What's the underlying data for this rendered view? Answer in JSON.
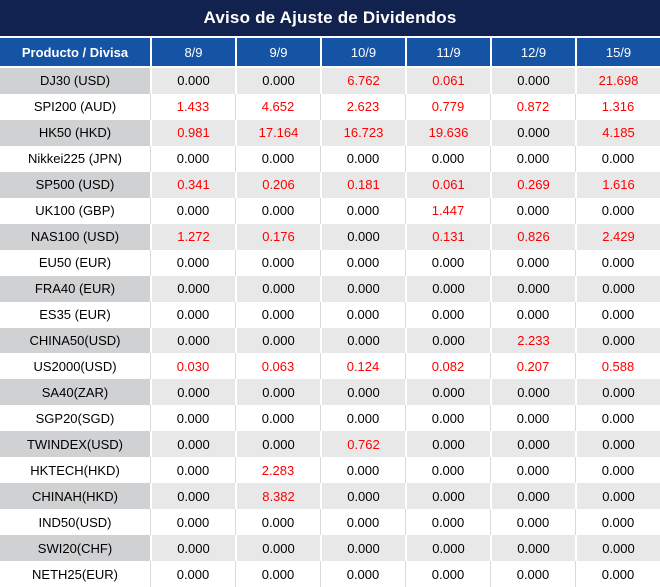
{
  "title": "Aviso de Ajuste de Dividendos",
  "colors": {
    "title_bg": "#12224e",
    "header_bg": "#1553a4",
    "alt_row_label_bg": "#d0d1d3",
    "alt_row_value_bg": "#e8e8e9",
    "grid_line": "#d9d9d9",
    "value_red": "#ff0000",
    "text_black": "#000000",
    "header_text": "#ffffff"
  },
  "table": {
    "headers": [
      "Producto / Divisa",
      "8/9",
      "9/9",
      "10/9",
      "11/9",
      "12/9",
      "15/9"
    ],
    "rows": [
      {
        "product": "DJ30 (USD)",
        "values": [
          "0.000",
          "0.000",
          "6.762",
          "0.061",
          "0.000",
          "21.698"
        ]
      },
      {
        "product": "SPI200 (AUD)",
        "values": [
          "1.433",
          "4.652",
          "2.623",
          "0.779",
          "0.872",
          "1.316"
        ]
      },
      {
        "product": "HK50 (HKD)",
        "values": [
          "0.981",
          "17.164",
          "16.723",
          "19.636",
          "0.000",
          "4.185"
        ]
      },
      {
        "product": "Nikkei225 (JPN)",
        "values": [
          "0.000",
          "0.000",
          "0.000",
          "0.000",
          "0.000",
          "0.000"
        ]
      },
      {
        "product": "SP500 (USD)",
        "values": [
          "0.341",
          "0.206",
          "0.181",
          "0.061",
          "0.269",
          "1.616"
        ]
      },
      {
        "product": "UK100 (GBP)",
        "values": [
          "0.000",
          "0.000",
          "0.000",
          "1.447",
          "0.000",
          "0.000"
        ]
      },
      {
        "product": "NAS100 (USD)",
        "values": [
          "1.272",
          "0.176",
          "0.000",
          "0.131",
          "0.826",
          "2.429"
        ]
      },
      {
        "product": "EU50 (EUR)",
        "values": [
          "0.000",
          "0.000",
          "0.000",
          "0.000",
          "0.000",
          "0.000"
        ]
      },
      {
        "product": "FRA40 (EUR)",
        "values": [
          "0.000",
          "0.000",
          "0.000",
          "0.000",
          "0.000",
          "0.000"
        ]
      },
      {
        "product": "ES35 (EUR)",
        "values": [
          "0.000",
          "0.000",
          "0.000",
          "0.000",
          "0.000",
          "0.000"
        ]
      },
      {
        "product": "CHINA50(USD)",
        "values": [
          "0.000",
          "0.000",
          "0.000",
          "0.000",
          "2.233",
          "0.000"
        ]
      },
      {
        "product": "US2000(USD)",
        "values": [
          "0.030",
          "0.063",
          "0.124",
          "0.082",
          "0.207",
          "0.588"
        ]
      },
      {
        "product": "SA40(ZAR)",
        "values": [
          "0.000",
          "0.000",
          "0.000",
          "0.000",
          "0.000",
          "0.000"
        ]
      },
      {
        "product": "SGP20(SGD)",
        "values": [
          "0.000",
          "0.000",
          "0.000",
          "0.000",
          "0.000",
          "0.000"
        ]
      },
      {
        "product": "TWINDEX(USD)",
        "values": [
          "0.000",
          "0.000",
          "0.762",
          "0.000",
          "0.000",
          "0.000"
        ]
      },
      {
        "product": "HKTECH(HKD)",
        "values": [
          "0.000",
          "2.283",
          "0.000",
          "0.000",
          "0.000",
          "0.000"
        ]
      },
      {
        "product": "CHINAH(HKD)",
        "values": [
          "0.000",
          "8.382",
          "0.000",
          "0.000",
          "0.000",
          "0.000"
        ]
      },
      {
        "product": "IND50(USD)",
        "values": [
          "0.000",
          "0.000",
          "0.000",
          "0.000",
          "0.000",
          "0.000"
        ]
      },
      {
        "product": "SWI20(CHF)",
        "values": [
          "0.000",
          "0.000",
          "0.000",
          "0.000",
          "0.000",
          "0.000"
        ]
      },
      {
        "product": "NETH25(EUR)",
        "values": [
          "0.000",
          "0.000",
          "0.000",
          "0.000",
          "0.000",
          "0.000"
        ]
      }
    ]
  }
}
